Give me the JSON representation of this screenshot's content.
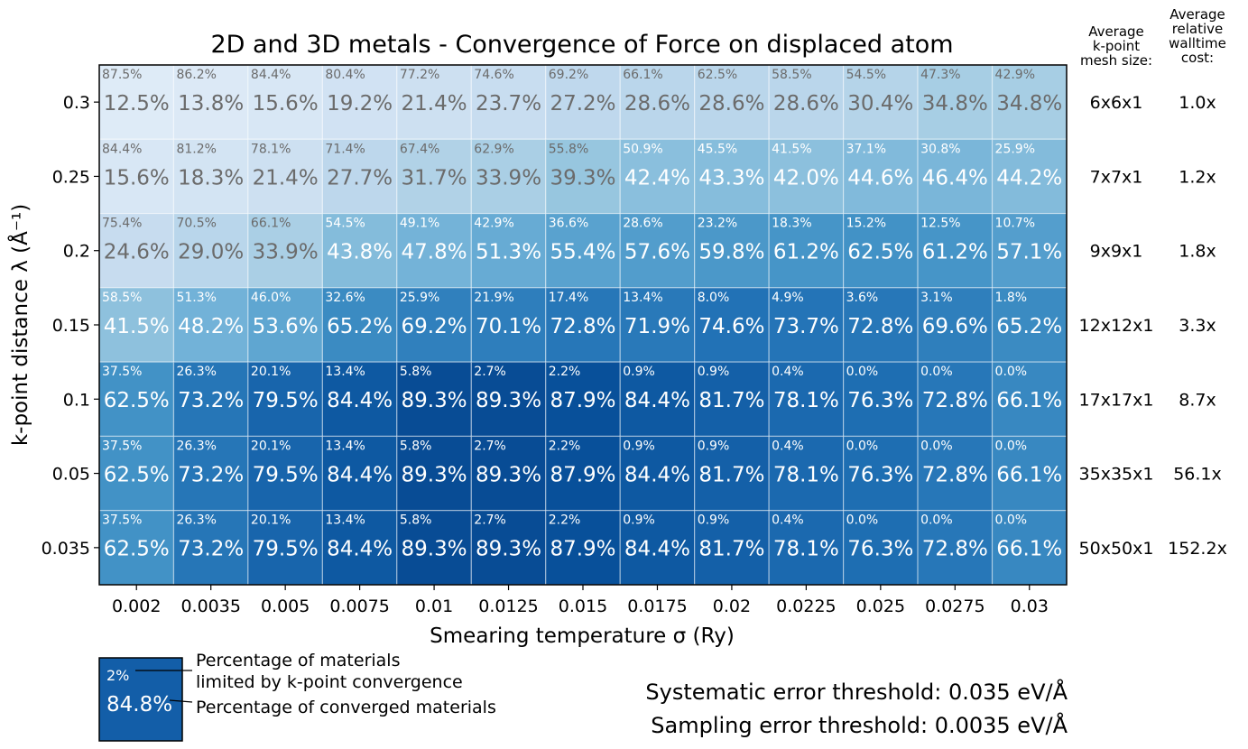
{
  "chart_data": {
    "type": "heatmap",
    "title": "2D and 3D metals - Convergence of Force on displaced atom",
    "xlabel": "Smearing temperature σ (Ry)",
    "ylabel": "k-point distance λ (Å⁻¹)",
    "x": [
      "0.002",
      "0.0035",
      "0.005",
      "0.0075",
      "0.01",
      "0.0125",
      "0.015",
      "0.0175",
      "0.02",
      "0.0225",
      "0.025",
      "0.0275",
      "0.03"
    ],
    "y": [
      "0.3",
      "0.25",
      "0.2",
      "0.15",
      "0.1",
      "0.05",
      "0.035"
    ],
    "converged": [
      [
        "12.5%",
        "13.8%",
        "15.6%",
        "19.2%",
        "21.4%",
        "23.7%",
        "27.2%",
        "28.6%",
        "28.6%",
        "28.6%",
        "30.4%",
        "34.8%",
        "34.8%"
      ],
      [
        "15.6%",
        "18.3%",
        "21.4%",
        "27.7%",
        "31.7%",
        "33.9%",
        "39.3%",
        "42.4%",
        "43.3%",
        "42.0%",
        "44.6%",
        "46.4%",
        "44.2%"
      ],
      [
        "24.6%",
        "29.0%",
        "33.9%",
        "43.8%",
        "47.8%",
        "51.3%",
        "55.4%",
        "57.6%",
        "59.8%",
        "61.2%",
        "62.5%",
        "61.2%",
        "57.1%"
      ],
      [
        "41.5%",
        "48.2%",
        "53.6%",
        "65.2%",
        "69.2%",
        "70.1%",
        "72.8%",
        "71.9%",
        "74.6%",
        "73.7%",
        "72.8%",
        "69.6%",
        "65.2%"
      ],
      [
        "62.5%",
        "73.2%",
        "79.5%",
        "84.4%",
        "89.3%",
        "89.3%",
        "87.9%",
        "84.4%",
        "81.7%",
        "78.1%",
        "76.3%",
        "72.8%",
        "66.1%"
      ],
      [
        "62.5%",
        "73.2%",
        "79.5%",
        "84.4%",
        "89.3%",
        "89.3%",
        "87.9%",
        "84.4%",
        "81.7%",
        "78.1%",
        "76.3%",
        "72.8%",
        "66.1%"
      ],
      [
        "62.5%",
        "73.2%",
        "79.5%",
        "84.4%",
        "89.3%",
        "89.3%",
        "87.9%",
        "84.4%",
        "81.7%",
        "78.1%",
        "76.3%",
        "72.8%",
        "66.1%"
      ]
    ],
    "kpoint_limited": [
      [
        "87.5%",
        "86.2%",
        "84.4%",
        "80.4%",
        "77.2%",
        "74.6%",
        "69.2%",
        "66.1%",
        "62.5%",
        "58.5%",
        "54.5%",
        "47.3%",
        "42.9%"
      ],
      [
        "84.4%",
        "81.2%",
        "78.1%",
        "71.4%",
        "67.4%",
        "62.9%",
        "55.8%",
        "50.9%",
        "45.5%",
        "41.5%",
        "37.1%",
        "30.8%",
        "25.9%"
      ],
      [
        "75.4%",
        "70.5%",
        "66.1%",
        "54.5%",
        "49.1%",
        "42.9%",
        "36.6%",
        "28.6%",
        "23.2%",
        "18.3%",
        "15.2%",
        "12.5%",
        "10.7%"
      ],
      [
        "58.5%",
        "51.3%",
        "46.0%",
        "32.6%",
        "25.9%",
        "21.9%",
        "17.4%",
        "13.4%",
        "8.0%",
        "4.9%",
        "3.6%",
        "3.1%",
        "1.8%"
      ],
      [
        "37.5%",
        "26.3%",
        "20.1%",
        "13.4%",
        "5.8%",
        "2.7%",
        "2.2%",
        "0.9%",
        "0.9%",
        "0.4%",
        "0.0%",
        "0.0%",
        "0.0%"
      ],
      [
        "37.5%",
        "26.3%",
        "20.1%",
        "13.4%",
        "5.8%",
        "2.7%",
        "2.2%",
        "0.9%",
        "0.9%",
        "0.4%",
        "0.0%",
        "0.0%",
        "0.0%"
      ],
      [
        "37.5%",
        "26.3%",
        "20.1%",
        "13.4%",
        "5.8%",
        "2.7%",
        "2.2%",
        "0.9%",
        "0.9%",
        "0.4%",
        "0.0%",
        "0.0%",
        "0.0%"
      ]
    ],
    "mesh_header": [
      "Average",
      "k-point",
      "mesh size:"
    ],
    "cost_header": [
      "Average",
      "relative",
      "walltime",
      "cost:"
    ],
    "mesh": [
      "6x6x1",
      "7x7x1",
      "9x9x1",
      "12x12x1",
      "17x17x1",
      "35x35x1",
      "50x50x1"
    ],
    "cost": [
      "1.0x",
      "1.2x",
      "1.8x",
      "3.3x",
      "8.7x",
      "56.1x",
      "152.2x"
    ],
    "colormap": "Blues",
    "color_range": [
      0,
      100
    ],
    "text_color_light": "#ffffff",
    "text_color_dark": "#6b6b6b"
  },
  "legend": {
    "sub_value": "2%",
    "main_value": "84.8%",
    "label_limited_1": "Percentage of materials",
    "label_limited_2": "limited by k-point convergence",
    "label_converged": "Percentage of converged materials"
  },
  "thresholds": {
    "systematic": "Systematic error threshold: 0.035 eV/Å",
    "sampling": "Sampling error threshold: 0.0035 eV/Å"
  }
}
